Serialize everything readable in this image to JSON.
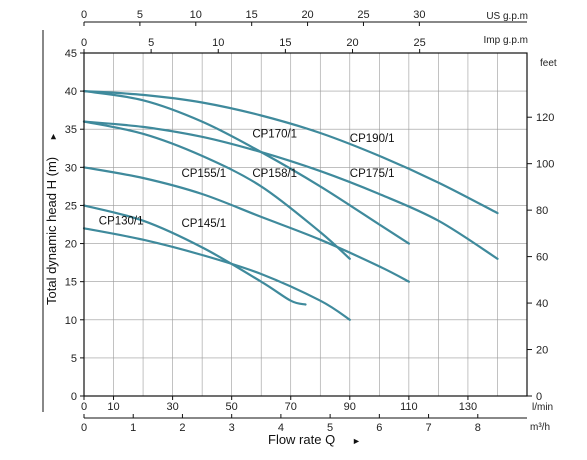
{
  "chart_data": {
    "type": "line",
    "title": "",
    "xlabel": "Flow rate Q",
    "xlabel_marker": "►",
    "ylabel": "Total dynamic head H (m)",
    "ylabel_marker": "►",
    "x_unit": "l/min",
    "xlim": [
      0,
      150
    ],
    "ylim": [
      0,
      45
    ],
    "grid": true,
    "x_ticks": [
      0,
      10,
      30,
      50,
      70,
      90,
      110,
      130
    ],
    "y_ticks": [
      0,
      5,
      10,
      15,
      20,
      25,
      30,
      35,
      40,
      45
    ],
    "secondary_axes": {
      "top_us": {
        "unit": "US g.p.m",
        "ticks": [
          0,
          5,
          10,
          15,
          20,
          25,
          30
        ],
        "factor": 3.785
      },
      "top_imp": {
        "unit": "Imp g.p.m",
        "ticks": [
          0,
          5,
          10,
          15,
          20,
          25
        ],
        "factor": 4.546
      },
      "bottom_m3h": {
        "unit": "m³/h",
        "ticks": [
          0,
          1,
          2,
          3,
          4,
          5,
          6,
          7,
          8
        ],
        "factor": 16.667
      },
      "right_feet": {
        "unit": "feet",
        "ticks": [
          0,
          20,
          40,
          60,
          80,
          100,
          120
        ],
        "factor": 0.3048
      }
    },
    "series": [
      {
        "name": "CP130/1",
        "x": [
          0,
          20,
          40,
          60,
          70,
          75
        ],
        "y": [
          25,
          23,
          19.5,
          15,
          12.5,
          12
        ]
      },
      {
        "name": "CP145/1",
        "x": [
          0,
          20,
          40,
          60,
          80,
          90
        ],
        "y": [
          22,
          20.5,
          18.5,
          16,
          12.5,
          10
        ]
      },
      {
        "name": "CP155/1",
        "x": [
          0,
          20,
          40,
          60,
          80,
          100,
          110
        ],
        "y": [
          30,
          28.6,
          26.5,
          23.5,
          20.5,
          17,
          15
        ]
      },
      {
        "name": "CP158/1",
        "x": [
          0,
          20,
          40,
          60,
          80,
          90
        ],
        "y": [
          36,
          34.4,
          31.5,
          27.5,
          21.5,
          18
        ]
      },
      {
        "name": "CP170/1",
        "x": [
          0,
          20,
          40,
          60,
          80,
          100,
          110
        ],
        "y": [
          40,
          38.8,
          36,
          32,
          27.5,
          22.5,
          20
        ]
      },
      {
        "name": "CP175/1",
        "x": [
          0,
          20,
          40,
          60,
          80,
          100,
          120,
          140
        ],
        "y": [
          36,
          35.3,
          34,
          32,
          29.5,
          26.5,
          23,
          18
        ]
      },
      {
        "name": "CP190/1",
        "x": [
          0,
          20,
          40,
          60,
          80,
          100,
          120,
          140
        ],
        "y": [
          40,
          39.5,
          38.5,
          36.8,
          34.5,
          31.5,
          28,
          24
        ]
      }
    ],
    "labels": [
      {
        "text": "CP130/1",
        "x": 5,
        "y": 22.5
      },
      {
        "text": "CP145/1",
        "x": 33,
        "y": 22.2
      },
      {
        "text": "CP155/1",
        "x": 33,
        "y": 28.7
      },
      {
        "text": "CP158/1",
        "x": 57,
        "y": 28.7
      },
      {
        "text": "CP170/1",
        "x": 57,
        "y": 33.9
      },
      {
        "text": "CP175/1",
        "x": 90,
        "y": 28.7
      },
      {
        "text": "CP190/1",
        "x": 90,
        "y": 33.3
      }
    ],
    "colors": {
      "curve": "#3f8a9c",
      "grid": "#9a9a9a",
      "axis": "#111111"
    }
  }
}
